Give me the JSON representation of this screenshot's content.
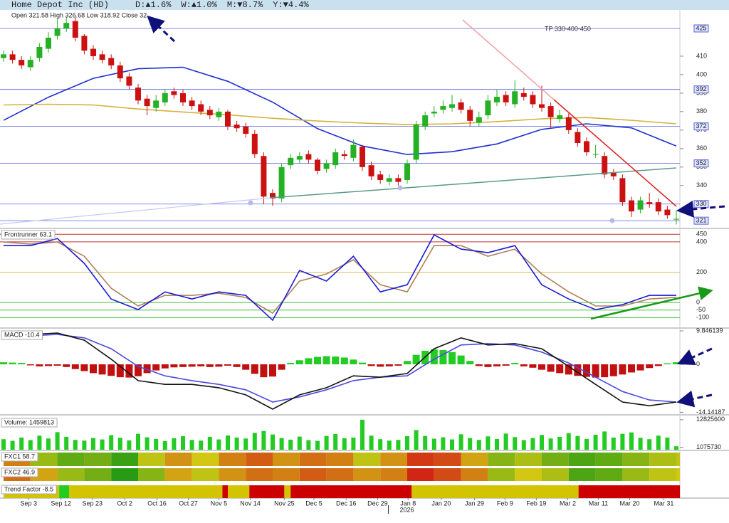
{
  "chart_data": [
    {
      "type": "candlestick",
      "title": "Home Depot Inc (HD)",
      "changes": [
        {
          "text": "D:▲1.6%",
          "color": "#1a8f1a"
        },
        {
          "text": "W:▲1.0%",
          "color": "#1a8f1a"
        },
        {
          "text": "M:▼8.7%",
          "color": "#c81010"
        },
        {
          "text": "Y:▼4.4%",
          "color": "#c81010"
        }
      ],
      "ohlc_text": "Open 321.58  High 326.68  Low 318.92  Close 32",
      "annotation": "TP 330-400-450",
      "xlim": [
        0,
        75
      ],
      "xticks": [
        {
          "value": 2.8,
          "label": "Sep 3"
        },
        {
          "value": 6.4,
          "label": "Sep 12"
        },
        {
          "value": 9.9,
          "label": "Sep 23"
        },
        {
          "value": 13.5,
          "label": "Oct 2"
        },
        {
          "value": 17.1,
          "label": "Oct 16"
        },
        {
          "value": 20.6,
          "label": "Oct 27"
        },
        {
          "value": 24.0,
          "label": "Nov 5"
        },
        {
          "value": 27.5,
          "label": "Nov 14"
        },
        {
          "value": 31.3,
          "label": "Nov 25"
        },
        {
          "value": 34.6,
          "label": "Dec 5"
        },
        {
          "value": 38.2,
          "label": "Dec 16"
        },
        {
          "value": 41.7,
          "label": "Dec 29"
        },
        {
          "value": 45.1,
          "label": "Jan 8"
        },
        {
          "value": 48.8,
          "label": "Jan 20"
        },
        {
          "value": 52.5,
          "label": "Jan 29"
        },
        {
          "value": 55.9,
          "label": "Feb 9"
        },
        {
          "value": 59.4,
          "label": "Feb 19"
        },
        {
          "value": 62.9,
          "label": "Mar 2"
        },
        {
          "value": 66.3,
          "label": "Mar 11"
        },
        {
          "value": 69.8,
          "label": "Mar 20"
        },
        {
          "value": 73.6,
          "label": "Mar 31"
        }
      ],
      "year_tick": {
        "value": 42.9,
        "label": "2026"
      },
      "open": [
        409,
        411,
        408,
        404,
        409,
        414,
        421,
        425,
        429,
        421,
        414,
        411,
        409,
        405,
        399,
        393,
        387,
        382,
        385,
        391,
        390,
        386,
        384,
        381,
        377,
        380,
        373,
        372,
        368,
        356,
        336,
        333,
        351,
        354,
        357,
        354,
        349,
        351,
        357,
        355,
        361,
        351,
        346,
        342,
        344,
        343,
        354,
        372,
        379,
        381,
        382,
        385,
        381,
        374,
        378,
        385,
        389,
        384,
        390,
        389,
        384,
        383,
        376,
        377,
        369,
        364,
        357,
        356,
        347,
        344,
        332,
        327,
        331,
        331,
        327,
        321.58
      ],
      "high": [
        413,
        413,
        410,
        410,
        417,
        423,
        430,
        431,
        431,
        422,
        416,
        413,
        411,
        407,
        401,
        395,
        389,
        389,
        392,
        393,
        392,
        388,
        386,
        383,
        382,
        381,
        375,
        374,
        370,
        358,
        338,
        352,
        357,
        358,
        359,
        355,
        354,
        360,
        359,
        365,
        362,
        353,
        348,
        346,
        346,
        354,
        375,
        380,
        383,
        386,
        389,
        387,
        383,
        380,
        389,
        392,
        391,
        397,
        393,
        391,
        394,
        385,
        381,
        379,
        371,
        366,
        362,
        358,
        349,
        346,
        334,
        334,
        336,
        333,
        329,
        326.68
      ],
      "low": [
        407,
        406,
        403,
        402,
        407,
        412,
        419,
        423,
        418,
        411,
        408,
        406,
        403,
        396,
        392,
        384,
        378,
        380,
        383,
        387,
        383,
        381,
        378,
        376,
        375,
        370,
        369,
        366,
        355,
        330,
        329,
        331,
        349,
        352,
        352,
        346,
        347,
        349,
        354,
        353,
        348,
        343,
        341,
        340,
        340,
        341,
        352,
        370,
        377,
        379,
        380,
        379,
        372,
        372,
        376,
        383,
        383,
        382,
        386,
        382,
        380,
        371,
        374,
        368,
        361,
        356,
        355,
        344,
        343,
        329,
        323,
        325,
        328,
        324,
        322,
        318.92
      ],
      "close": [
        411,
        408,
        405,
        408,
        415,
        420,
        425,
        428,
        420,
        413,
        410,
        408,
        405,
        398,
        394,
        386,
        383,
        386,
        390,
        389,
        385,
        383,
        380,
        378,
        380,
        372,
        371,
        368,
        357,
        334,
        333,
        350,
        355,
        356,
        354,
        348,
        352,
        358,
        356,
        362,
        350,
        345,
        343,
        344,
        342,
        352,
        373,
        378,
        380,
        383,
        384,
        381,
        375,
        377,
        386,
        388,
        385,
        391,
        388,
        384,
        382,
        377,
        378,
        370,
        363,
        358,
        357,
        346,
        345,
        331,
        326,
        332,
        330,
        326,
        324,
        322
      ],
      "up_color": "#25b025",
      "down_color": "#cc1111",
      "ylim": [
        317.2,
        435
      ],
      "yticks": [
        340,
        350,
        360,
        370,
        380,
        390,
        400,
        410
      ],
      "levels": [
        425,
        392,
        372,
        352,
        330,
        321
      ],
      "level_color": "#5a64e6",
      "series": [
        {
          "color": "#1f2fd0",
          "x": [
            0,
            5,
            10,
            15,
            20,
            25,
            30,
            35,
            40,
            45,
            50,
            55,
            60,
            65,
            70,
            75
          ],
          "values": [
            375.3,
            387.8,
            398,
            403.2,
            404,
            396.4,
            385.1,
            370.8,
            361.4,
            356.8,
            358.3,
            362.5,
            370.4,
            373.4,
            371.2,
            361.4
          ]
        },
        {
          "color": "#d4b23a",
          "x": [
            0,
            5,
            10,
            15,
            20,
            25,
            30,
            35,
            40,
            45,
            50,
            55,
            60,
            65,
            70,
            75
          ],
          "values": [
            383.6,
            384,
            383.6,
            381.4,
            379.8,
            378.3,
            376.4,
            374.9,
            373.8,
            373,
            373.4,
            374.6,
            376.1,
            376.8,
            375.3,
            373.4
          ]
        }
      ]
    },
    {
      "type": "line",
      "title": "Frontrunner 63.1",
      "ylim": [
        -164,
        484
      ],
      "yticks": [
        450,
        400,
        200,
        0,
        -50,
        -100
      ],
      "tick_colors": [
        "#c03030",
        "#c03030",
        "#d8c060",
        "#40c040",
        "#40c040",
        "#40c040"
      ],
      "x": [
        0,
        3,
        6,
        9,
        12,
        15,
        18,
        21,
        24,
        27,
        30,
        33,
        36,
        39,
        42,
        45,
        48,
        51,
        54,
        57,
        60,
        63,
        66,
        69,
        72,
        75
      ],
      "series": [
        {
          "color": "#b08058",
          "values": [
            399,
            385,
            399,
            305,
            94,
            -23,
            47,
            47,
            61,
            33,
            -70,
            141,
            188,
            282,
            117,
            70,
            375,
            375,
            305,
            352,
            188,
            70,
            -23,
            -23,
            23,
            33
          ]
        },
        {
          "color": "#1a1ad8",
          "values": [
            375,
            375,
            422,
            258,
            23,
            -47,
            70,
            23,
            70,
            47,
            -117,
            211,
            141,
            305,
            70,
            117,
            446,
            352,
            329,
            375,
            117,
            23,
            -47,
            -14,
            47,
            47
          ]
        }
      ]
    },
    {
      "type": "macd",
      "title": "MACD -10.4",
      "ylim": [
        -14.67,
        10.27
      ],
      "yticks": [
        9.846139,
        0,
        -14.14187
      ],
      "histogram": {
        "up_color": "#22cc22",
        "down_color": "#c01010",
        "values": [
          0.6,
          0.5,
          0.4,
          -0.3,
          -0.6,
          -0.5,
          -0.4,
          -0.8,
          -1.4,
          -2,
          -2.6,
          -3,
          -3.4,
          -3.8,
          -3.9,
          -3.5,
          -2.6,
          -1.8,
          -1.2,
          -0.9,
          -0.8,
          -0.7,
          -0.6,
          -0.8,
          -0.7,
          -0.4,
          -0.8,
          -1.6,
          -2.8,
          -3.8,
          -3.6,
          -1.6,
          0.4,
          1.2,
          1.8,
          2.2,
          2.4,
          2.3,
          2.0,
          1.4,
          0.5,
          -0.5,
          -0.7,
          -0.6,
          -0.4,
          1.0,
          2.8,
          4.0,
          4.4,
          4.2,
          3.6,
          2.6,
          1.0,
          -0.5,
          -0.8,
          -0.6,
          -0.4,
          0.4,
          -0.6,
          -1.0,
          -1.6,
          -2.2,
          -2.6,
          -3.0,
          -3.4,
          -3.7,
          -3.9,
          -3.8,
          -3.5,
          -3.0,
          -2.4,
          -1.8,
          -1.1,
          -0.5,
          0.3,
          0.6
        ]
      },
      "x": [
        0,
        3,
        6,
        9,
        12,
        15,
        18,
        21,
        24,
        27,
        30,
        33,
        36,
        39,
        42,
        45,
        48,
        51,
        54,
        57,
        60,
        63,
        66,
        69,
        72,
        75
      ],
      "series": [
        {
          "color": "#4a4ae0",
          "values": [
            8.8,
            8.4,
            8.8,
            7.8,
            4.6,
            -0.6,
            -3.4,
            -4.8,
            -5.9,
            -7.5,
            -11.1,
            -9.6,
            -7.5,
            -4.8,
            -3.8,
            -3.4,
            1.5,
            5.7,
            6.1,
            5.7,
            3.6,
            0.4,
            -3.8,
            -8.0,
            -10.5,
            -11.1
          ]
        },
        {
          "color": "#111111",
          "values": [
            9.2,
            8.8,
            9.2,
            7.1,
            1.5,
            -4.8,
            -5.9,
            -5.9,
            -6.9,
            -9.0,
            -13.2,
            -9.0,
            -6.9,
            -3.4,
            -3.8,
            -2.7,
            4.6,
            7.8,
            5.7,
            6.1,
            4.6,
            -0.6,
            -5.9,
            -11.1,
            -12.2,
            -11.1
          ]
        }
      ]
    },
    {
      "type": "bar",
      "title": "Volume: 1459813",
      "color": "#22cc22",
      "ylim": [
        0,
        14000000
      ],
      "yticks": [
        12825600,
        1075730
      ],
      "values": [
        4500000,
        3800000,
        5200000,
        4100000,
        6000000,
        4800000,
        7500000,
        5500000,
        4200000,
        3900000,
        5000000,
        4400000,
        6200000,
        5100000,
        4000000,
        6800000,
        5300000,
        4600000,
        3700000,
        4900000,
        5800000,
        4200000,
        3900000,
        5500000,
        4400000,
        6100000,
        5200000,
        4800000,
        7200000,
        8000000,
        6500000,
        5000000,
        4300000,
        5600000,
        4100000,
        3800000,
        5900000,
        6700000,
        4900000,
        5200000,
        12825600,
        6000000,
        4500000,
        3900000,
        4200000,
        5800000,
        8400000,
        5900000,
        4700000,
        5300000,
        4400000,
        6600000,
        5000000,
        4200000,
        5700000,
        4600000,
        6900000,
        5400000,
        4100000,
        5000000,
        6300000,
        4800000,
        5500000,
        7100000,
        5900000,
        4600000,
        6400000,
        7800000,
        5200000,
        6800000,
        7400000,
        5100000,
        4500000,
        6000000,
        5200000,
        1459813
      ]
    },
    {
      "type": "heatmap",
      "title": "FXC1 58.7",
      "x": [
        0,
        3,
        6,
        9,
        12,
        15,
        18,
        21,
        24,
        27,
        30,
        33,
        36,
        39,
        42,
        45,
        48,
        51,
        54,
        57,
        60,
        63,
        66,
        69,
        72,
        75
      ],
      "values": [
        -40,
        30,
        60,
        50,
        80,
        10,
        -30,
        0,
        -40,
        -60,
        -30,
        -50,
        -40,
        10,
        -30,
        -80,
        -70,
        -20,
        40,
        20,
        50,
        70,
        60,
        40,
        20,
        10
      ]
    },
    {
      "type": "heatmap",
      "title": "FXC2 46.9",
      "x": [
        0,
        3,
        6,
        9,
        12,
        15,
        18,
        21,
        24,
        27,
        30,
        33,
        36,
        39,
        42,
        45,
        48,
        51,
        54,
        57,
        60,
        63,
        66,
        69,
        72,
        75
      ],
      "values": [
        -50,
        -20,
        30,
        50,
        90,
        40,
        -20,
        10,
        -30,
        -50,
        -40,
        -60,
        -50,
        -30,
        -40,
        -90,
        -70,
        -40,
        30,
        0,
        20,
        70,
        60,
        30,
        10,
        0
      ]
    },
    {
      "type": "segments",
      "title": "Trend Factor -8.5",
      "bounds": [
        0,
        6.2,
        7.3,
        24.4,
        25.0,
        27.4,
        31.3,
        32.0,
        45.5,
        64.1,
        75.4
      ],
      "colors": [
        "#d2c400",
        "#22cc22",
        "#d2c400",
        "#cc0000",
        "#d2c400",
        "#cc0000",
        "#d2c400",
        "#cc0000",
        "#d2c400",
        "#cc0000"
      ]
    }
  ]
}
